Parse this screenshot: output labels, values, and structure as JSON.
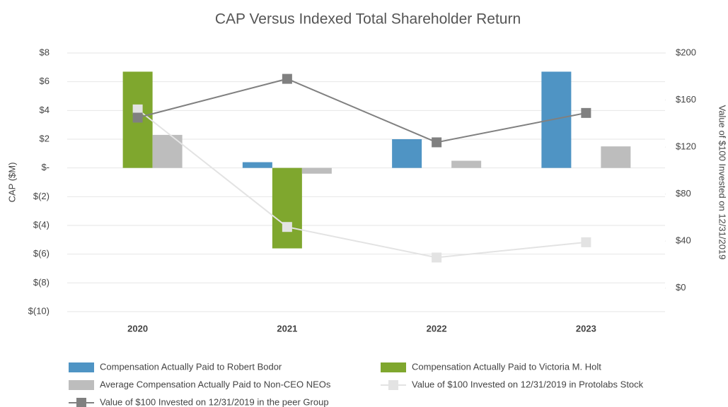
{
  "chart_data": {
    "type": "bar_line",
    "title": "CAP Versus Indexed Total Shareholder Return",
    "ylabel": "CAP ($M)",
    "y2label": "Value of $100 Invested on 12/31/2019",
    "categories": [
      "2020",
      "2021",
      "2022",
      "2023"
    ],
    "ylim": [
      -10,
      8
    ],
    "yticks": [
      {
        "value": -10,
        "label": "$(10)"
      },
      {
        "value": -8,
        "label": "$(8)"
      },
      {
        "value": -6,
        "label": "$(6)"
      },
      {
        "value": -4,
        "label": "$(4)"
      },
      {
        "value": -2,
        "label": "$(2)"
      },
      {
        "value": 0,
        "label": "$-"
      },
      {
        "value": 2,
        "label": "$2"
      },
      {
        "value": 4,
        "label": "$4"
      },
      {
        "value": 6,
        "label": "$6"
      },
      {
        "value": 8,
        "label": "$8"
      }
    ],
    "y2lim": [
      -20,
      200
    ],
    "y2ticks": [
      {
        "value": 0,
        "label": "$0"
      },
      {
        "value": 40,
        "label": "$40"
      },
      {
        "value": 80,
        "label": "$80"
      },
      {
        "value": 120,
        "label": "$120"
      },
      {
        "value": 160,
        "label": "$160"
      },
      {
        "value": 200,
        "label": "$200"
      }
    ],
    "grid": true,
    "series": [
      {
        "name": "Compensation Actually Paid to Robert Bodor",
        "type": "bar",
        "color": "#4f94c4",
        "values": [
          null,
          0.4,
          2.0,
          6.7
        ]
      },
      {
        "name": "Compensation Actually Paid to Victoria M. Holt",
        "type": "bar",
        "color": "#7fa72e",
        "values": [
          6.7,
          -5.6,
          null,
          null
        ]
      },
      {
        "name": "Average Compensation Actually Paid to Non-CEO NEOs",
        "type": "bar",
        "color": "#bdbdbd",
        "values": [
          2.3,
          -0.4,
          0.5,
          1.5
        ]
      },
      {
        "name": "Value of $100 Invested on 12/31/2019 in Protolabs Stock",
        "type": "line",
        "axis": "y2",
        "color": "#e3e3e3",
        "values": [
          152,
          52,
          26,
          39
        ]
      },
      {
        "name": "Value of $100 Invested on 12/31/2019 in the peer Group",
        "type": "line",
        "axis": "y2",
        "color": "#808080",
        "values": [
          145,
          178,
          124,
          149
        ]
      }
    ]
  }
}
